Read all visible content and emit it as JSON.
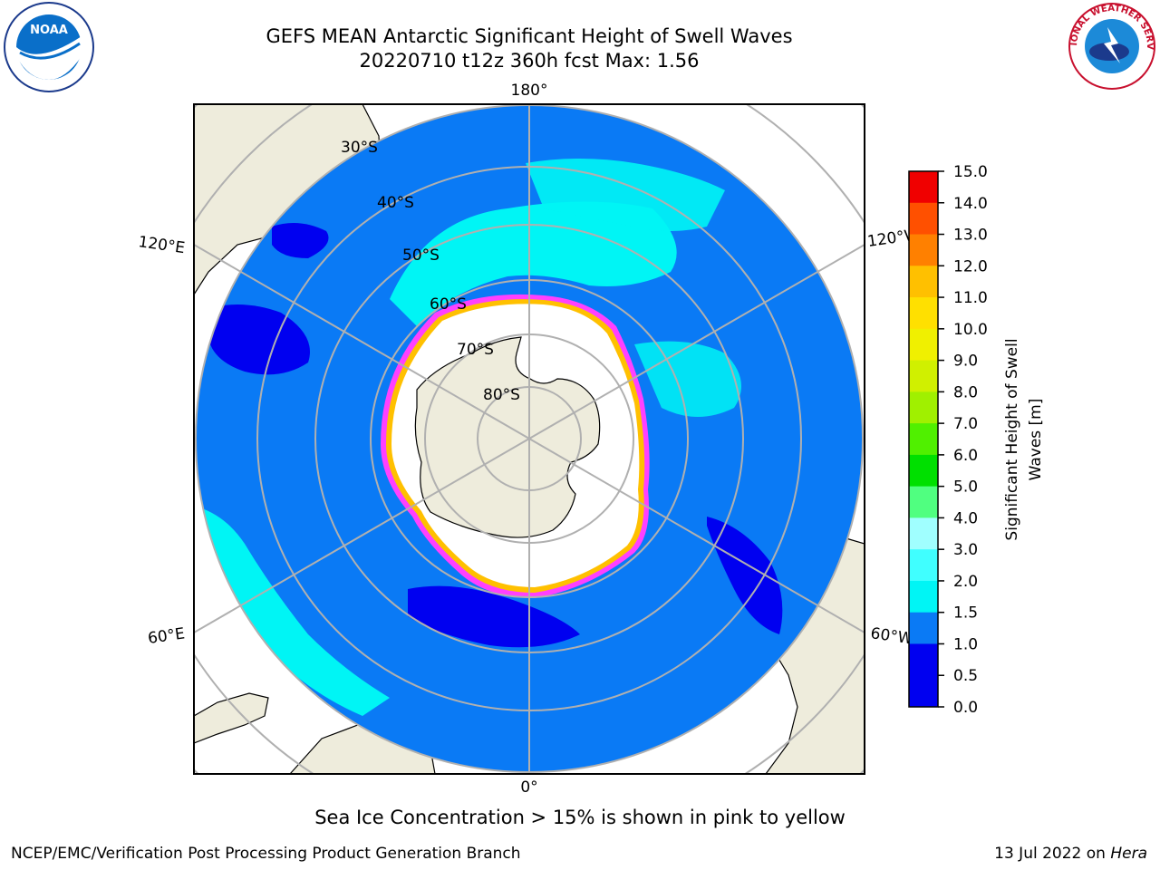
{
  "title": {
    "line1": "GEFS MEAN Antarctic Significant Height of Swell Waves",
    "line2": "20220710 t12z 360h fcst   Max: 1.56"
  },
  "logos": {
    "left": {
      "icon": "noaa-logo-icon",
      "text": "NOAA"
    },
    "right": {
      "icon": "nws-logo-icon",
      "text": "NATIONAL WEATHER SERVICE"
    }
  },
  "map": {
    "projection": "south-polar-stereographic",
    "lat_labels": [
      "30°S",
      "40°S",
      "50°S",
      "60°S",
      "70°S",
      "80°S"
    ],
    "lon_labels": {
      "top": "180°",
      "bottom": "0°",
      "upper_left": "120°E",
      "lower_left": "60°E",
      "upper_right": "120°W",
      "lower_right": "60°W"
    },
    "colors": {
      "ocean_fill": "#0a7af5",
      "low_swell": "#0000f0",
      "mid_swell": "#00f5f5",
      "land": "#eeecdc",
      "ice": "#ffffff",
      "ice_edge_pink": "#ff40ff",
      "ice_edge_yellow": "#ffc000",
      "grid": "#b0b0b0"
    }
  },
  "colorbar": {
    "label_line1": "Significant Height of Swell",
    "label_line2": "Waves [m]",
    "ticks": [
      "15.0",
      "14.0",
      "13.0",
      "12.0",
      "11.0",
      "10.0",
      "9.0",
      "8.0",
      "7.0",
      "6.0",
      "5.0",
      "4.0",
      "3.0",
      "2.0",
      "1.0",
      "0.0"
    ],
    "colors": [
      "#0000f0",
      "#0a7af5",
      "#00f5f5",
      "#40ffff",
      "#a0ffff",
      "#50ff80",
      "#00e000",
      "#50f000",
      "#a0f000",
      "#d0f000",
      "#f0f000",
      "#ffe000",
      "#ffc000",
      "#ff8000",
      "#ff5000",
      "#f00000"
    ],
    "bounds_labels": [
      "15.0",
      "14.0",
      "13.0",
      "12.0",
      "11.0",
      "10.0",
      "9.0",
      "8.0",
      "7.0",
      "6.0",
      "5.0",
      "4.0",
      "3.0",
      "2.0",
      "1.5",
      "1.0",
      "0.5",
      "0.0"
    ]
  },
  "note": "Sea Ice Concentration > 15% is shown in pink to yellow",
  "footer": {
    "left": "NCEP/EMC/Verification Post Processing Product Generation Branch",
    "right_prefix": "13 Jul 2022 on ",
    "right_host": "Hera"
  }
}
